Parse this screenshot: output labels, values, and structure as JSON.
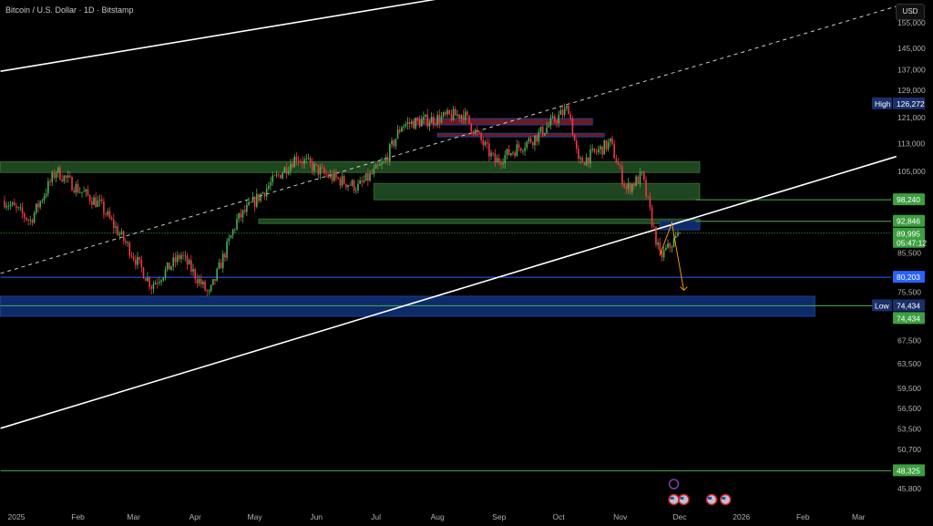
{
  "header": {
    "title": "Bitcoin / U.S. Dollar · 1D · Bitstamp",
    "currency": "USD"
  },
  "chart_data": {
    "type": "candlestick",
    "yscale": "log",
    "ylim": [
      44000,
      165000
    ],
    "xlim": [
      "2024-12-24",
      "2026-03-20"
    ],
    "grid": false,
    "y_ticks": [
      155000,
      145000,
      137000,
      129000,
      121000,
      113000,
      105000,
      85500,
      75500,
      67500,
      63500,
      59500,
      56500,
      53500,
      50700,
      45800
    ],
    "x_ticks": [
      {
        "label": "2025",
        "date": "2025-01-01"
      },
      {
        "label": "Feb",
        "date": "2025-02-01"
      },
      {
        "label": "Mar",
        "date": "2025-03-01"
      },
      {
        "label": "Apr",
        "date": "2025-04-01"
      },
      {
        "label": "May",
        "date": "2025-05-01"
      },
      {
        "label": "Jun",
        "date": "2025-06-01"
      },
      {
        "label": "Jul",
        "date": "2025-07-01"
      },
      {
        "label": "Aug",
        "date": "2025-08-01"
      },
      {
        "label": "Sep",
        "date": "2025-09-01"
      },
      {
        "label": "Oct",
        "date": "2025-10-01"
      },
      {
        "label": "Nov",
        "date": "2025-11-01"
      },
      {
        "label": "Dec",
        "date": "2025-12-01"
      },
      {
        "label": "2026",
        "date": "2026-01-01"
      },
      {
        "label": "Feb",
        "date": "2026-02-01"
      },
      {
        "label": "Mar",
        "date": "2026-03-01"
      }
    ],
    "price_path": [
      [
        "2024-12-26",
        98000
      ],
      [
        "2025-01-08",
        93000
      ],
      [
        "2025-01-21",
        106000
      ],
      [
        "2025-02-01",
        101000
      ],
      [
        "2025-02-12",
        97000
      ],
      [
        "2025-02-26",
        87000
      ],
      [
        "2025-03-10",
        78500
      ],
      [
        "2025-03-25",
        85000
      ],
      [
        "2025-04-08",
        76500
      ],
      [
        "2025-04-22",
        93000
      ],
      [
        "2025-05-10",
        103000
      ],
      [
        "2025-05-22",
        110000
      ],
      [
        "2025-06-05",
        105000
      ],
      [
        "2025-06-22",
        101500
      ],
      [
        "2025-07-05",
        108000
      ],
      [
        "2025-07-14",
        119500
      ],
      [
        "2025-08-14",
        123000
      ],
      [
        "2025-08-30",
        108500
      ],
      [
        "2025-09-20",
        116000
      ],
      [
        "2025-10-06",
        125000
      ],
      [
        "2025-10-11",
        108000
      ],
      [
        "2025-10-27",
        114000
      ],
      [
        "2025-11-04",
        101000
      ],
      [
        "2025-11-12",
        104500
      ],
      [
        "2025-11-21",
        84500
      ],
      [
        "2025-11-25",
        86500
      ],
      [
        "2025-12-01",
        89995
      ]
    ],
    "colors": {
      "up": "#4caf50",
      "down": "#f23645"
    },
    "levels": [
      {
        "label": "98,240",
        "price": 98240,
        "color": "#4caf50",
        "style": "solid",
        "from": "2025-12-09"
      },
      {
        "label": "92,846",
        "price": 92846,
        "color": "#4caf50",
        "style": "solid",
        "from": "2025-12-09"
      },
      {
        "label": "89,995",
        "sub": "05:47:12",
        "price": 89995,
        "color": "#4caf50",
        "style": "dotted",
        "from": "2024-12-24"
      },
      {
        "label": "80,203",
        "price": 80203,
        "color": "#2962ff",
        "style": "solid",
        "from": "2024-12-24"
      },
      {
        "label": "74,434",
        "price": 74434,
        "color": "#4caf50",
        "style": "solid",
        "from": "2024-12-24"
      },
      {
        "label": "48,325",
        "price": 48325,
        "color": "#4caf50",
        "style": "solid",
        "from": "2024-12-24"
      }
    ],
    "high_marker": {
      "label": "High",
      "value": "126,272",
      "price": 126272
    },
    "low_marker": {
      "label": "Low",
      "value": "74,434",
      "price": 74434
    },
    "zones": [
      {
        "from": "2024-12-24",
        "to": "2025-12-11",
        "top": 108500,
        "bottom": 105500,
        "color": "#1e4620"
      },
      {
        "from": "2025-06-30",
        "to": "2025-12-11",
        "top": 102500,
        "bottom": 98240,
        "color": "#1e4620"
      },
      {
        "from": "2025-05-03",
        "to": "2025-12-11",
        "top": 93400,
        "bottom": 92300,
        "color": "#1e4620"
      },
      {
        "from": "2025-11-21",
        "to": "2025-12-11",
        "top": 92846,
        "bottom": 90800,
        "color": "#0d2a6b"
      },
      {
        "from": "2025-07-20",
        "to": "2025-10-18",
        "top": 121500,
        "bottom": 119500,
        "color": "#6b1b24"
      },
      {
        "from": "2025-08-01",
        "to": "2025-10-24",
        "top": 116900,
        "bottom": 115800,
        "color": "#6b1b24"
      },
      {
        "from": "2024-12-24",
        "to": "2026-02-07",
        "top": 76300,
        "bottom": 72400,
        "color": "#0d2a6b"
      }
    ],
    "trendlines": [
      {
        "p1": [
          "2024-12-24",
          137500
        ],
        "p2": [
          "2025-07-31",
          166000
        ],
        "color": "#ffffff",
        "dash": false
      },
      {
        "p1": [
          "2024-12-24",
          54000
        ],
        "p2": [
          "2026-03-20",
          110000
        ],
        "color": "#ffffff",
        "dash": false
      },
      {
        "p1": [
          "2024-12-24",
          81000
        ],
        "p2": [
          "2026-03-20",
          163000
        ],
        "color": "#cccccc",
        "dash": true
      }
    ],
    "projection": {
      "points": [
        [
          "2025-11-21",
          85000
        ],
        [
          "2025-11-27",
          92500
        ],
        [
          "2025-12-03",
          77500
        ]
      ],
      "color": "#f7931a"
    },
    "events": [
      {
        "type": "lightning",
        "date": "2025-11-28"
      },
      {
        "type": "us-flag",
        "date": "2025-11-28"
      },
      {
        "type": "us-flag",
        "date": "2025-12-03"
      },
      {
        "type": "us-flag",
        "date": "2025-12-17"
      },
      {
        "type": "us-flag",
        "date": "2025-12-24"
      }
    ]
  }
}
